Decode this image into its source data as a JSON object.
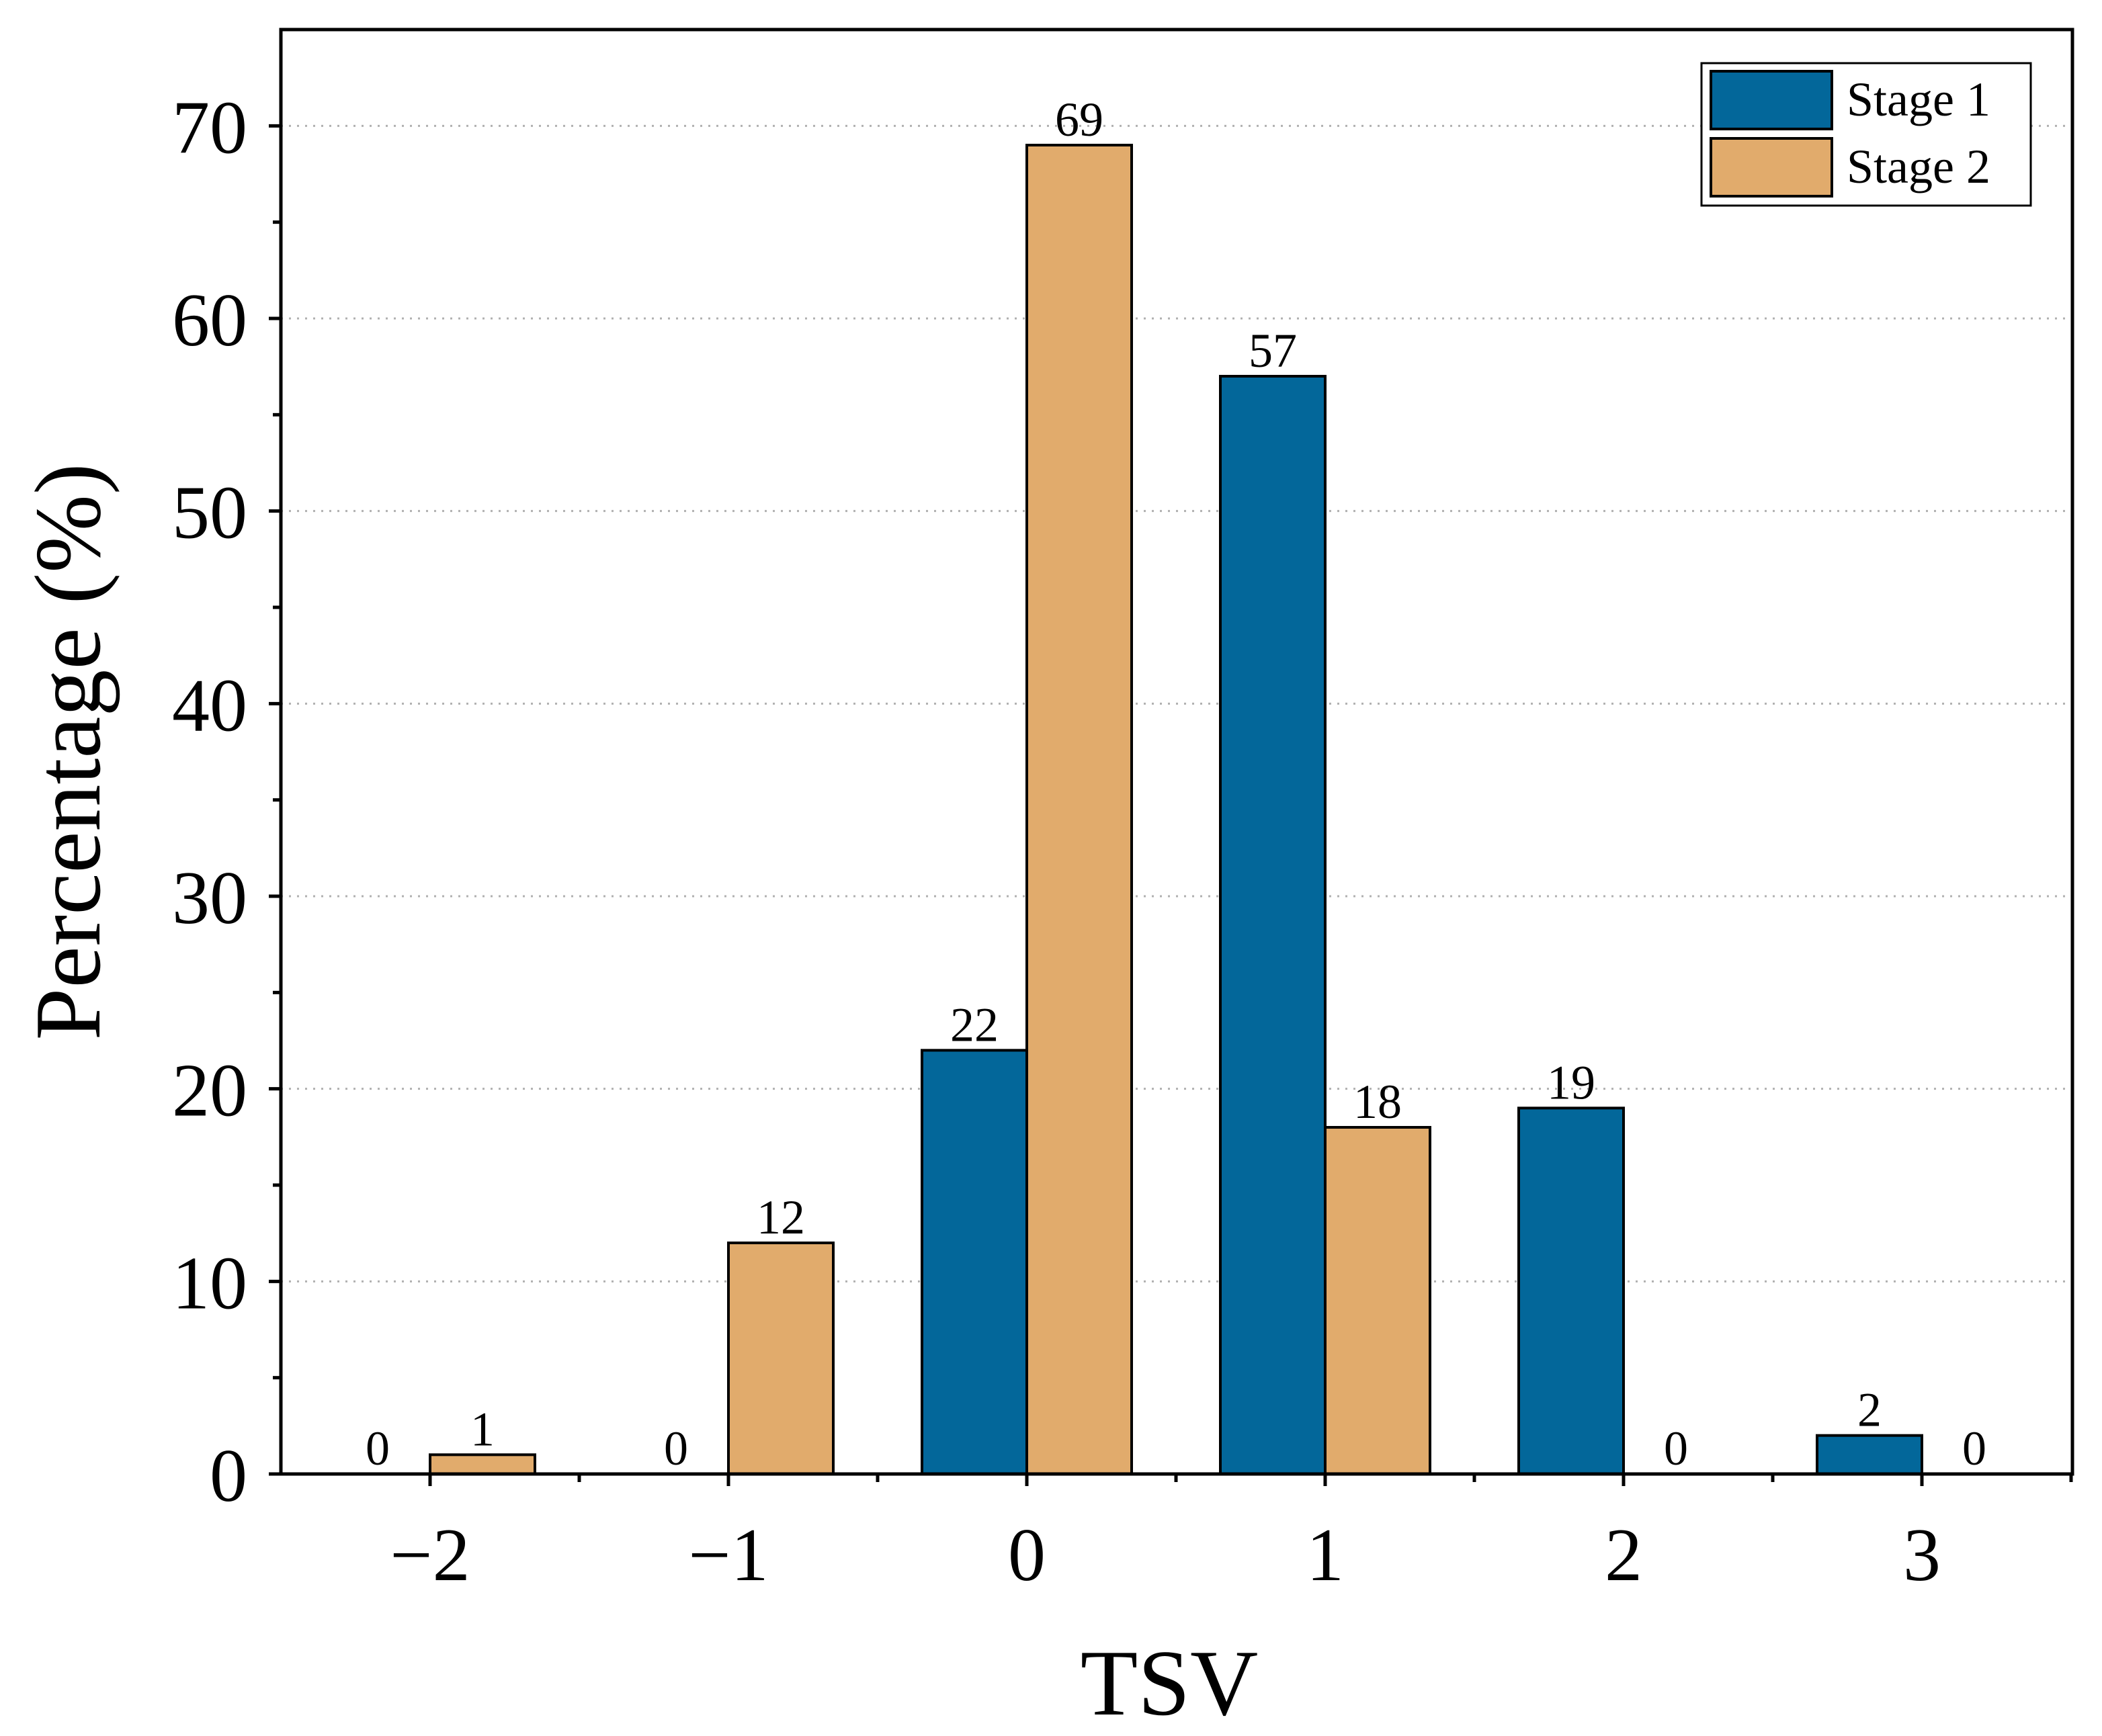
{
  "chart_data": {
    "type": "bar",
    "title": "",
    "xlabel": "TSV",
    "ylabel": "Percentage (%)",
    "categories": [
      "−2",
      "−1",
      "0",
      "1",
      "2",
      "3"
    ],
    "series": [
      {
        "name": "Stage 1",
        "color": "#03679a",
        "values": [
          0,
          0,
          22,
          57,
          19,
          2
        ]
      },
      {
        "name": "Stage 2",
        "color": "#e1ab6c",
        "values": [
          1,
          12,
          69,
          18,
          0,
          0
        ]
      }
    ],
    "ylim": [
      0,
      75
    ],
    "yticks": [
      0,
      10,
      20,
      30,
      40,
      50,
      60,
      70
    ],
    "yminor_step": 5,
    "grid": "horizontal dotted at major ticks",
    "legend": "top-right",
    "data_labels": true
  }
}
